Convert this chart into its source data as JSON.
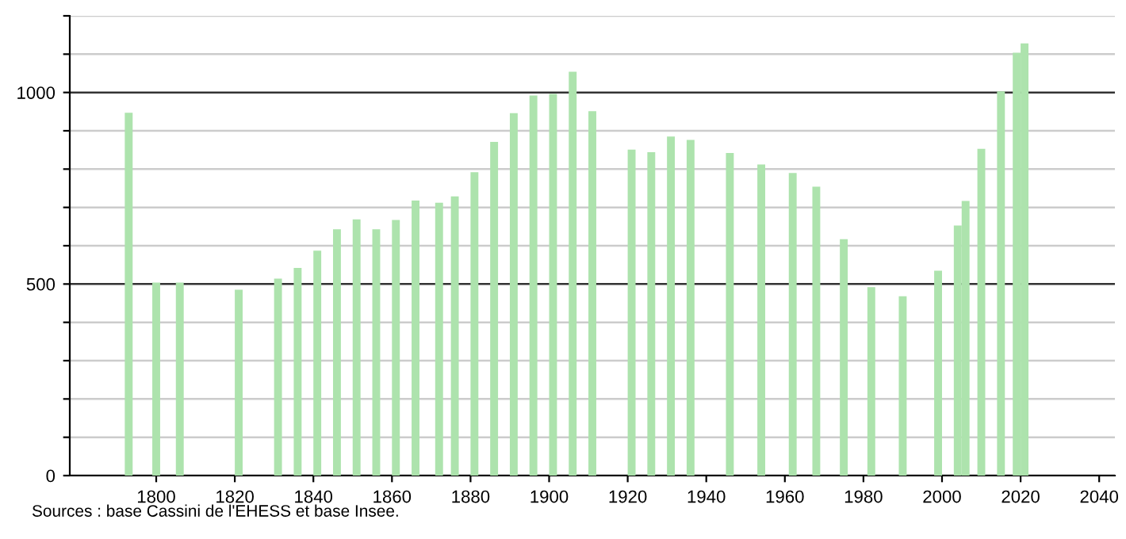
{
  "chart_data": {
    "type": "bar",
    "x": [
      1793,
      1800,
      1806,
      1821,
      1831,
      1836,
      1841,
      1846,
      1851,
      1856,
      1861,
      1866,
      1872,
      1876,
      1881,
      1886,
      1891,
      1896,
      1901,
      1906,
      1911,
      1921,
      1926,
      1931,
      1936,
      1946,
      1954,
      1962,
      1968,
      1975,
      1982,
      1990,
      1999,
      2004,
      2006,
      2010,
      2015,
      2019,
      2021
    ],
    "values": [
      947,
      504,
      504,
      485,
      514,
      542,
      587,
      643,
      669,
      643,
      667,
      718,
      712,
      729,
      792,
      871,
      946,
      992,
      996,
      1054,
      951,
      851,
      844,
      885,
      876,
      842,
      812,
      790,
      754,
      617,
      492,
      468,
      535,
      653,
      717,
      853,
      1003,
      1104,
      1128
    ],
    "color": "#ade3ad",
    "xlim": [
      1778,
      2044
    ],
    "xticks": [
      1800,
      1820,
      1840,
      1860,
      1880,
      1900,
      1920,
      1940,
      1960,
      1980,
      2000,
      2020,
      2040
    ],
    "ylim": [
      0,
      1200
    ],
    "yticks": [
      0,
      {
        "value": 100,
        "label": null
      },
      {
        "value": 200,
        "label": null
      },
      {
        "value": 300,
        "label": null
      },
      {
        "value": 400,
        "label": null
      },
      500,
      {
        "value": 600,
        "label": null
      },
      {
        "value": 700,
        "label": null
      },
      {
        "value": 800,
        "label": null
      },
      {
        "value": 900,
        "label": null
      },
      1000,
      {
        "value": 1100,
        "label": null
      },
      {
        "value": 1200,
        "label": null
      }
    ],
    "grid": "y",
    "annotations": [
      "Sources : base Cassini de l'EHESS et base Insee."
    ]
  }
}
